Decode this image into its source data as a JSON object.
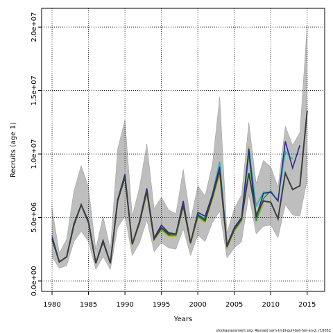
{
  "chart_data": {
    "type": "line",
    "x": [
      1980,
      1981,
      1982,
      1983,
      1984,
      1985,
      1986,
      1987,
      1988,
      1989,
      1990,
      1991,
      1992,
      1993,
      1994,
      1995,
      1996,
      1997,
      1998,
      1999,
      2000,
      2001,
      2002,
      2003,
      2004,
      2005,
      2006,
      2007,
      2008,
      2009,
      2010,
      2011,
      2012,
      2013,
      2014,
      2015
    ],
    "band": {
      "color": "#bebebe",
      "lower": [
        1900000.0,
        1000000.0,
        1200000.0,
        3100000.0,
        3900000.0,
        3100000.0,
        900000.0,
        1900000.0,
        900000.0,
        4200000.0,
        5100000.0,
        2000000.0,
        3000000.0,
        4800000.0,
        2300000.0,
        3000000.0,
        2600000.0,
        2500000.0,
        4100000.0,
        2000000.0,
        3600000.0,
        3100000.0,
        4600000.0,
        5500000.0,
        1800000.0,
        2600000.0,
        3100000.0,
        6800000.0,
        3700000.0,
        4300000.0,
        4400000.0,
        3400000.0,
        6000000.0,
        5200000.0,
        5100000.0,
        8000000.0
      ],
      "upper": [
        5700000.0,
        2200000.0,
        3300000.0,
        7100000.0,
        9100000.0,
        7400000.0,
        2500000.0,
        5100000.0,
        2500000.0,
        10400000.0,
        12700000.0,
        5100000.0,
        7400000.0,
        10800000.0,
        5700000.0,
        6600000.0,
        5600000.0,
        5300000.0,
        8800000.0,
        4800000.0,
        7500000.0,
        6700000.0,
        9200000.0,
        14500000.0,
        3800000.0,
        5700000.0,
        6800000.0,
        12500000.0,
        7700000.0,
        9500000.0,
        9000000.0,
        7400000.0,
        12200000.0,
        10700000.0,
        11700000.0,
        20100000.0
      ]
    },
    "series": [
      {
        "color": "#b5b52a",
        "values": [
          3400000.0,
          1500000.0,
          1900000.0,
          4400000.0,
          6000000.0,
          4600000.0,
          1400000.0,
          3100000.0,
          1400000.0,
          6300000.0,
          8100000.0,
          2800000.0,
          4500000.0,
          6900000.0,
          3200000.0,
          4000000.0,
          3500000.0,
          3500000.0,
          5800000.0,
          2900000.0,
          5000000.0,
          4600000.0,
          6400000.0,
          8400000.0,
          2600000.0,
          3900000.0,
          4700000.0,
          10600000.0,
          4800000.0,
          6000000.0,
          null,
          null,
          null,
          null,
          null,
          null
        ]
      },
      {
        "color": "#1f9e1f",
        "values": [
          3500000.0,
          1500000.0,
          1900000.0,
          4500000.0,
          6000000.0,
          4700000.0,
          1400000.0,
          3200000.0,
          1400000.0,
          6400000.0,
          8300000.0,
          2900000.0,
          4600000.0,
          7000000.0,
          3300000.0,
          4100000.0,
          3600000.0,
          3600000.0,
          5900000.0,
          3000000.0,
          5100000.0,
          4700000.0,
          6600000.0,
          8800000.0,
          2700000.0,
          4000000.0,
          4800000.0,
          10000000.0,
          4700000.0,
          6500000.0,
          7100000.0,
          6300000.0,
          null,
          null,
          null,
          null
        ]
      },
      {
        "color": "#28b4b4",
        "values": [
          3500000.0,
          1500000.0,
          1900000.0,
          4500000.0,
          6000000.0,
          4700000.0,
          1400000.0,
          3200000.0,
          1400000.0,
          6400000.0,
          8400000.0,
          2900000.0,
          4700000.0,
          7100000.0,
          3400000.0,
          4200000.0,
          3700000.0,
          3700000.0,
          6100000.0,
          3000000.0,
          5300000.0,
          4900000.0,
          6900000.0,
          9400000.0,
          2800000.0,
          4200000.0,
          5000000.0,
          10400000.0,
          5900000.0,
          7000000.0,
          7000000.0,
          6400000.0,
          10200000.0,
          9600000.0,
          null,
          null
        ]
      },
      {
        "color": "#2b2b8c",
        "values": [
          3500000.0,
          1500000.0,
          1900000.0,
          4500000.0,
          6000000.0,
          4700000.0,
          1400000.0,
          3200000.0,
          1400000.0,
          6400000.0,
          8400000.0,
          2900000.0,
          4700000.0,
          7300000.0,
          3400000.0,
          4400000.0,
          3800000.0,
          3700000.0,
          6300000.0,
          3000000.0,
          5400000.0,
          5100000.0,
          6800000.0,
          9000000.0,
          2800000.0,
          4200000.0,
          5000000.0,
          10400000.0,
          5000000.0,
          6900000.0,
          7000000.0,
          6300000.0,
          11000000.0,
          8900000.0,
          10700000.0,
          null
        ]
      },
      {
        "color": "#3d3d3d",
        "values": [
          3300000.0,
          1500000.0,
          1900000.0,
          4400000.0,
          6000000.0,
          4600000.0,
          1400000.0,
          3100000.0,
          1400000.0,
          6300000.0,
          8200000.0,
          2900000.0,
          4600000.0,
          7100000.0,
          3300000.0,
          4200000.0,
          3700000.0,
          3700000.0,
          6000000.0,
          3000000.0,
          5200000.0,
          4800000.0,
          6600000.0,
          8700000.0,
          2700000.0,
          4100000.0,
          4900000.0,
          8500000.0,
          5200000.0,
          6300000.0,
          6200000.0,
          4900000.0,
          8500000.0,
          7200000.0,
          7500000.0,
          13400000.0
        ]
      }
    ],
    "xlim": [
      1978.57,
      2017.4
    ],
    "xticks": [
      1980,
      1985,
      1990,
      1995,
      2000,
      2005,
      2010,
      2015
    ],
    "ylim": [
      -820000.0,
      21480000.0
    ],
    "yticks": [
      {
        "value": 0,
        "label": "0.0e+00"
      },
      {
        "value": 5000000,
        "label": "5.0e+06"
      },
      {
        "value": 10000000,
        "label": "1.0e+07"
      },
      {
        "value": 15000000,
        "label": "1.5e+07"
      },
      {
        "value": 20000000,
        "label": "2.0e+07"
      }
    ],
    "grid": true,
    "x_label": "Years",
    "y_label": "Recruits (age 1)",
    "footnote": "stockassessment.org, Revised sam-tmbl-gulf-bot-her-an-2, r10052"
  }
}
